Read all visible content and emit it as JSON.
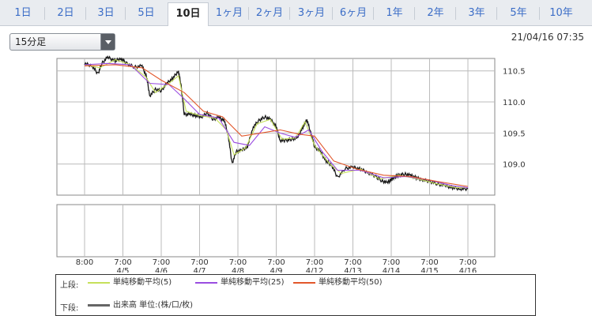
{
  "tabs": [
    {
      "label": "1日"
    },
    {
      "label": "2日"
    },
    {
      "label": "3日"
    },
    {
      "label": "5日"
    },
    {
      "label": "10日",
      "active": true
    },
    {
      "label": "1ヶ月"
    },
    {
      "label": "2ヶ月"
    },
    {
      "label": "3ヶ月"
    },
    {
      "label": "6ヶ月"
    },
    {
      "label": "1年"
    },
    {
      "label": "2年"
    },
    {
      "label": "3年"
    },
    {
      "label": "5年"
    },
    {
      "label": "10年"
    }
  ],
  "interval_select": {
    "value": "15分足"
  },
  "timestamp": "21/04/16 07:35",
  "legend": {
    "upper_label": "上段:",
    "lower_label": "下段:",
    "sma5": "単純移動平均(5)",
    "sma25": "単純移動平均(25)",
    "sma50": "単純移動平均(50)",
    "volume": "出来高 単位:(株/口/枚)"
  },
  "colors": {
    "candle": "#1a1a1a",
    "sma5": "#c6e05a",
    "sma25": "#9a4de0",
    "sma50": "#e2572b",
    "volume": "#666666",
    "grid": "#bbbbbb"
  },
  "chart_data": {
    "type": "line",
    "xlabel": "",
    "ylabel": "",
    "ylim": [
      108.5,
      110.7
    ],
    "yticks": [
      "110.5",
      "110.0",
      "109.5",
      "109.0"
    ],
    "ytick_values": [
      110.5,
      110.0,
      109.5,
      109.0
    ],
    "xticks": [
      {
        "time": "8:00",
        "date": ""
      },
      {
        "time": "7:00",
        "date": "4/5"
      },
      {
        "time": "7:00",
        "date": "4/6"
      },
      {
        "time": "7:00",
        "date": "4/7"
      },
      {
        "time": "7:00",
        "date": "4/8"
      },
      {
        "time": "7:00",
        "date": "4/9"
      },
      {
        "time": "7:00",
        "date": "4/12"
      },
      {
        "time": "7:00",
        "date": "4/13"
      },
      {
        "time": "7:00",
        "date": "4/14"
      },
      {
        "time": "7:00",
        "date": "4/15"
      },
      {
        "time": "7:00",
        "date": "4/16"
      }
    ],
    "xtick_index": [
      0,
      1,
      2,
      3,
      4,
      5,
      6,
      7,
      8,
      9,
      10
    ],
    "price": [
      [
        0.0,
        110.62
      ],
      [
        0.2,
        110.58
      ],
      [
        0.35,
        110.45
      ],
      [
        0.45,
        110.62
      ],
      [
        0.6,
        110.72
      ],
      [
        0.8,
        110.66
      ],
      [
        0.95,
        110.7
      ],
      [
        1.1,
        110.62
      ],
      [
        1.3,
        110.56
      ],
      [
        1.5,
        110.58
      ],
      [
        1.62,
        110.4
      ],
      [
        1.7,
        110.1
      ],
      [
        1.85,
        110.2
      ],
      [
        2.0,
        110.18
      ],
      [
        2.15,
        110.3
      ],
      [
        2.3,
        110.38
      ],
      [
        2.45,
        110.5
      ],
      [
        2.52,
        110.25
      ],
      [
        2.6,
        109.8
      ],
      [
        2.75,
        109.8
      ],
      [
        2.9,
        109.78
      ],
      [
        3.05,
        109.76
      ],
      [
        3.2,
        109.82
      ],
      [
        3.35,
        109.72
      ],
      [
        3.5,
        109.75
      ],
      [
        3.65,
        109.7
      ],
      [
        3.75,
        109.45
      ],
      [
        3.85,
        109.0
      ],
      [
        3.95,
        109.2
      ],
      [
        4.1,
        109.22
      ],
      [
        4.25,
        109.28
      ],
      [
        4.4,
        109.6
      ],
      [
        4.55,
        109.7
      ],
      [
        4.7,
        109.76
      ],
      [
        4.85,
        109.72
      ],
      [
        5.0,
        109.6
      ],
      [
        5.1,
        109.38
      ],
      [
        5.25,
        109.38
      ],
      [
        5.4,
        109.4
      ],
      [
        5.55,
        109.42
      ],
      [
        5.7,
        109.6
      ],
      [
        5.8,
        109.72
      ],
      [
        5.9,
        109.5
      ],
      [
        6.0,
        109.28
      ],
      [
        6.15,
        109.2
      ],
      [
        6.3,
        109.05
      ],
      [
        6.45,
        108.98
      ],
      [
        6.6,
        108.78
      ],
      [
        6.8,
        108.93
      ],
      [
        7.0,
        108.95
      ],
      [
        7.2,
        108.92
      ],
      [
        7.4,
        108.86
      ],
      [
        7.6,
        108.8
      ],
      [
        7.75,
        108.73
      ],
      [
        7.9,
        108.7
      ],
      [
        8.0,
        108.75
      ],
      [
        8.1,
        108.8
      ],
      [
        8.2,
        108.82
      ],
      [
        8.35,
        108.84
      ],
      [
        8.5,
        108.82
      ],
      [
        8.65,
        108.78
      ],
      [
        8.8,
        108.75
      ],
      [
        9.0,
        108.72
      ],
      [
        9.2,
        108.68
      ],
      [
        9.4,
        108.65
      ],
      [
        9.6,
        108.62
      ],
      [
        9.8,
        108.6
      ],
      [
        10.0,
        108.6
      ]
    ],
    "series": [
      {
        "name": "単純移動平均(5)",
        "values": [
          [
            0.0,
            110.6
          ],
          [
            0.4,
            110.55
          ],
          [
            0.8,
            110.68
          ],
          [
            1.2,
            110.6
          ],
          [
            1.6,
            110.4
          ],
          [
            1.85,
            110.15
          ],
          [
            2.2,
            110.3
          ],
          [
            2.45,
            110.42
          ],
          [
            2.65,
            109.85
          ],
          [
            3.0,
            109.78
          ],
          [
            3.4,
            109.74
          ],
          [
            3.7,
            109.55
          ],
          [
            3.9,
            109.15
          ],
          [
            4.2,
            109.26
          ],
          [
            4.5,
            109.65
          ],
          [
            4.85,
            109.72
          ],
          [
            5.15,
            109.4
          ],
          [
            5.5,
            109.42
          ],
          [
            5.75,
            109.68
          ],
          [
            6.0,
            109.3
          ],
          [
            6.4,
            109.0
          ],
          [
            6.7,
            108.85
          ],
          [
            7.2,
            108.92
          ],
          [
            7.7,
            108.76
          ],
          [
            8.2,
            108.82
          ],
          [
            8.7,
            108.76
          ],
          [
            9.2,
            108.68
          ],
          [
            9.7,
            108.62
          ],
          [
            10.0,
            108.62
          ]
        ]
      },
      {
        "name": "単純移動平均(25)",
        "values": [
          [
            0.0,
            110.6
          ],
          [
            0.6,
            110.62
          ],
          [
            1.2,
            110.6
          ],
          [
            1.7,
            110.3
          ],
          [
            2.2,
            110.28
          ],
          [
            2.6,
            110.05
          ],
          [
            3.0,
            109.8
          ],
          [
            3.5,
            109.74
          ],
          [
            3.9,
            109.35
          ],
          [
            4.3,
            109.3
          ],
          [
            4.7,
            109.6
          ],
          [
            5.1,
            109.5
          ],
          [
            5.5,
            109.43
          ],
          [
            5.85,
            109.55
          ],
          [
            6.2,
            109.2
          ],
          [
            6.6,
            108.9
          ],
          [
            7.2,
            108.9
          ],
          [
            7.8,
            108.78
          ],
          [
            8.4,
            108.8
          ],
          [
            9.0,
            108.74
          ],
          [
            9.6,
            108.65
          ],
          [
            10.0,
            108.62
          ]
        ]
      },
      {
        "name": "単純移動平均(50)",
        "values": [
          [
            0.0,
            110.58
          ],
          [
            0.8,
            110.6
          ],
          [
            1.5,
            110.55
          ],
          [
            2.0,
            110.35
          ],
          [
            2.6,
            110.15
          ],
          [
            3.1,
            109.85
          ],
          [
            3.6,
            109.76
          ],
          [
            4.1,
            109.45
          ],
          [
            4.6,
            109.5
          ],
          [
            5.1,
            109.55
          ],
          [
            5.6,
            109.48
          ],
          [
            6.0,
            109.45
          ],
          [
            6.5,
            109.05
          ],
          [
            7.1,
            108.92
          ],
          [
            7.8,
            108.82
          ],
          [
            8.5,
            108.8
          ],
          [
            9.2,
            108.72
          ],
          [
            10.0,
            108.64
          ]
        ]
      }
    ]
  }
}
